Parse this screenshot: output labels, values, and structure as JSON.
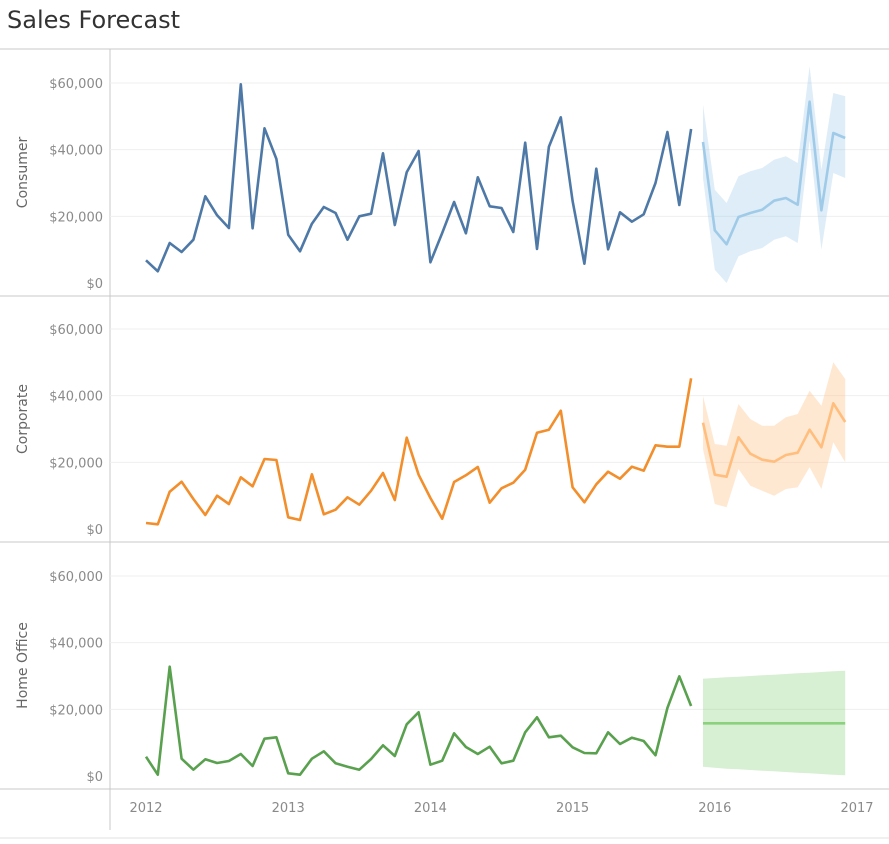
{
  "title": "Sales Forecast",
  "colors": {
    "Consumer": "#4e79a7",
    "Consumer_forecast": "#a0cbe8",
    "Corporate": "#f28e2b",
    "Corporate_forecast": "#ffbe7d",
    "Home Office": "#59a14f",
    "Home Office_forecast": "#8cd17d"
  },
  "chart_data": {
    "type": "line",
    "title": "Sales Forecast",
    "x_ticks": [
      "2012",
      "2013",
      "2014",
      "2015",
      "2016",
      "2017"
    ],
    "y_ticks": [
      "$0",
      "$20,000",
      "$40,000",
      "$60,000"
    ],
    "ylim": [
      0,
      65000
    ],
    "grid": true,
    "panels": [
      {
        "name": "Consumer",
        "actual": {
          "start": "2012-01",
          "values": [
            6800,
            3500,
            12000,
            9300,
            13000,
            26000,
            20300,
            16500,
            59600,
            16400,
            46400,
            37200,
            14500,
            9500,
            17800,
            22800,
            21000,
            13000,
            20000,
            20800,
            38900,
            17400,
            33200,
            39600,
            6200,
            15000,
            24300,
            14900,
            31700,
            23000,
            22500,
            15300,
            42100,
            10200,
            40900,
            49700,
            24600,
            5800,
            34300,
            10100,
            21200,
            18400,
            20600,
            30000,
            45300,
            23400,
            46200
          ]
        },
        "forecast": {
          "start": "2015-12",
          "values": [
            42300,
            15800,
            11600,
            19800,
            21000,
            22000,
            24700,
            25500,
            23500,
            54400,
            21800,
            45000,
            43500
          ],
          "upper": [
            53500,
            28000,
            24000,
            32000,
            33500,
            34500,
            37000,
            38000,
            36000,
            66000,
            34000,
            57000,
            56000
          ],
          "lower": [
            31500,
            4000,
            0,
            8000,
            9500,
            10500,
            13000,
            14000,
            12000,
            42800,
            10000,
            33000,
            31500
          ]
        }
      },
      {
        "name": "Corporate",
        "actual": {
          "start": "2012-01",
          "values": [
            1800,
            1400,
            11200,
            14200,
            9000,
            4200,
            10000,
            7500,
            15500,
            12800,
            21000,
            20700,
            3500,
            2700,
            16400,
            4400,
            5800,
            9500,
            7300,
            11500,
            16800,
            8700,
            27400,
            16300,
            9300,
            3100,
            14100,
            16100,
            18600,
            7900,
            12200,
            13900,
            17800,
            28900,
            29800,
            35500,
            12500,
            8000,
            13400,
            17200,
            15100,
            18700,
            17500,
            25100,
            24700,
            24700,
            45200
          ]
        },
        "forecast": {
          "start": "2015-12",
          "values": [
            31900,
            16300,
            15700,
            27500,
            22600,
            20800,
            20200,
            22200,
            22900,
            29800,
            24500,
            37700,
            32100
          ],
          "upper": [
            40000,
            25500,
            25000,
            37500,
            33000,
            31000,
            31000,
            33500,
            34500,
            41500,
            37000,
            50000,
            45000
          ],
          "lower": [
            24000,
            7500,
            6500,
            18000,
            13000,
            11500,
            10000,
            12000,
            12500,
            18500,
            12000,
            26000,
            20000
          ]
        }
      },
      {
        "name": "Home Office",
        "actual": {
          "start": "2012-01",
          "values": [
            5800,
            400,
            32800,
            5200,
            1900,
            5000,
            3900,
            4500,
            6600,
            3000,
            11200,
            11600,
            800,
            400,
            5200,
            7400,
            3800,
            2800,
            1900,
            5100,
            9200,
            6000,
            15500,
            19100,
            3400,
            4600,
            12800,
            8700,
            6600,
            8800,
            3800,
            4600,
            13100,
            17600,
            11600,
            12100,
            8600,
            6900,
            6800,
            13100,
            9600,
            11500,
            10500,
            6200,
            20400,
            29900,
            21000
          ]
        },
        "forecast": {
          "start": "2015-12",
          "values": [
            15800,
            15800,
            15800,
            15800,
            15800,
            15800,
            15800,
            15800,
            15800,
            15800,
            15800,
            15800,
            15800
          ],
          "upper": [
            29200,
            29400,
            29600,
            29800,
            30000,
            30200,
            30400,
            30600,
            30800,
            31000,
            31200,
            31400,
            31600
          ],
          "lower": [
            2800,
            2500,
            2200,
            2000,
            1800,
            1600,
            1400,
            1200,
            1000,
            800,
            600,
            400,
            200
          ]
        }
      }
    ]
  }
}
